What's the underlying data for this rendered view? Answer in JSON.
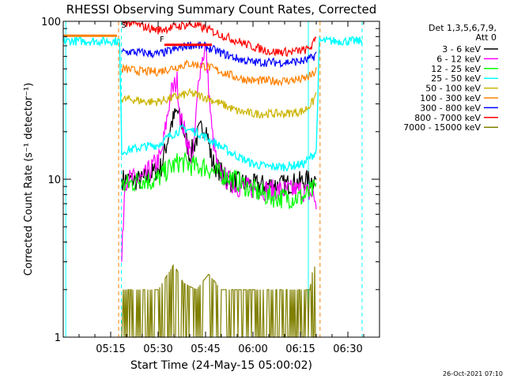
{
  "chart_data": {
    "type": "line",
    "title": "RHESSI Observing Summary Count Rates, Corrected",
    "xlabel": "Start Time (24-May-15 05:00:02)",
    "ylabel": "Corrected Count Rate (s⁻¹ detector⁻¹)",
    "y_scale": "log",
    "ylim": [
      1,
      100
    ],
    "xlim_minutes": [
      0,
      100
    ],
    "x_ticks": [
      {
        "m": 15,
        "label": "05:15"
      },
      {
        "m": 30,
        "label": "05:30"
      },
      {
        "m": 45,
        "label": "05:45"
      },
      {
        "m": 60,
        "label": "06:00"
      },
      {
        "m": 75,
        "label": "06:15"
      },
      {
        "m": 90,
        "label": "06:30"
      }
    ],
    "y_ticks": [
      {
        "v": 1,
        "label": "1"
      },
      {
        "v": 10,
        "label": "10"
      },
      {
        "v": 100,
        "label": "100"
      }
    ],
    "legend_header": [
      "Det 1,3,5,6,7,9,",
      "Att 0"
    ],
    "legend_position": "right",
    "series": [
      {
        "name": "3 - 6 keV",
        "color": "#000000",
        "points": [
          [
            18.5,
            10
          ],
          [
            25,
            9.8
          ],
          [
            31,
            12
          ],
          [
            34,
            22
          ],
          [
            36,
            27
          ],
          [
            38,
            21
          ],
          [
            40,
            14
          ],
          [
            43,
            20
          ],
          [
            45,
            22
          ],
          [
            47,
            13
          ],
          [
            52,
            9.8
          ],
          [
            60,
            9.2
          ],
          [
            70,
            9.2
          ],
          [
            77,
            9.8
          ],
          [
            80,
            10
          ]
        ]
      },
      {
        "name": "6 - 12 keV",
        "color": "#ff00ff",
        "points": [
          [
            18.5,
            3
          ],
          [
            19.5,
            10
          ],
          [
            25,
            10
          ],
          [
            31,
            14
          ],
          [
            34,
            35
          ],
          [
            36,
            42
          ],
          [
            37,
            25
          ],
          [
            39,
            18
          ],
          [
            41,
            13
          ],
          [
            43,
            48
          ],
          [
            45,
            70
          ],
          [
            47,
            20
          ],
          [
            49,
            11
          ],
          [
            55,
            9
          ],
          [
            65,
            8.5
          ],
          [
            75,
            8.5
          ],
          [
            79,
            8
          ],
          [
            80,
            7
          ]
        ]
      },
      {
        "name": "12 - 25 keV",
        "color": "#00ff00",
        "points": [
          [
            18.5,
            9
          ],
          [
            25,
            10
          ],
          [
            29,
            9.7
          ],
          [
            33,
            11.5
          ],
          [
            37,
            13
          ],
          [
            39,
            12.5
          ],
          [
            42,
            12
          ],
          [
            45,
            12
          ],
          [
            48,
            11
          ],
          [
            52,
            10.5
          ],
          [
            56,
            9.5
          ],
          [
            60,
            8.5
          ],
          [
            65,
            7.8
          ],
          [
            70,
            7.6
          ],
          [
            76,
            7.7
          ],
          [
            79,
            8.5
          ],
          [
            80,
            9
          ]
        ]
      },
      {
        "name": "25 - 50 keV",
        "color": "#00ffff",
        "points": [
          [
            0,
            75
          ],
          [
            17.8,
            75
          ],
          [
            18.5,
            15
          ],
          [
            25,
            16
          ],
          [
            30,
            16.5
          ],
          [
            34,
            19
          ],
          [
            38,
            21
          ],
          [
            42,
            20
          ],
          [
            46,
            18
          ],
          [
            50,
            16
          ],
          [
            55,
            14
          ],
          [
            60,
            12.5
          ],
          [
            65,
            12
          ],
          [
            70,
            12
          ],
          [
            76,
            12.5
          ],
          [
            80,
            15
          ],
          [
            81,
            75
          ],
          [
            94.5,
            75
          ]
        ]
      },
      {
        "name": "50 - 100 keV",
        "color": "#ccb400",
        "points": [
          [
            18.5,
            32
          ],
          [
            22,
            32
          ],
          [
            26,
            31
          ],
          [
            30,
            31
          ],
          [
            35,
            33
          ],
          [
            40,
            35
          ],
          [
            45,
            33
          ],
          [
            50,
            30
          ],
          [
            55,
            27
          ],
          [
            60,
            26
          ],
          [
            70,
            26
          ],
          [
            76,
            27
          ],
          [
            79,
            31
          ],
          [
            80,
            35
          ]
        ]
      },
      {
        "name": "100 - 300 keV",
        "color": "#ff8000",
        "points": [
          [
            18.5,
            50
          ],
          [
            22,
            49
          ],
          [
            26,
            48
          ],
          [
            30,
            48
          ],
          [
            35,
            51
          ],
          [
            40,
            54
          ],
          [
            45,
            52
          ],
          [
            50,
            48
          ],
          [
            55,
            44
          ],
          [
            60,
            42
          ],
          [
            70,
            42
          ],
          [
            76,
            43
          ],
          [
            79,
            46
          ],
          [
            80,
            49
          ]
        ]
      },
      {
        "name": "300 - 800 keV",
        "color": "#0000ff",
        "points": [
          [
            18.5,
            64
          ],
          [
            22,
            64
          ],
          [
            26,
            63
          ],
          [
            30,
            62
          ],
          [
            35,
            66
          ],
          [
            40,
            71
          ],
          [
            45,
            69
          ],
          [
            50,
            63
          ],
          [
            55,
            58
          ],
          [
            60,
            55
          ],
          [
            70,
            55
          ],
          [
            76,
            56
          ],
          [
            79,
            59
          ],
          [
            80,
            63
          ]
        ]
      },
      {
        "name": "800 - 7000 keV",
        "color": "#ff0000",
        "points": [
          [
            18.5,
            99
          ],
          [
            22,
            97
          ],
          [
            26,
            92
          ],
          [
            30,
            88
          ],
          [
            35,
            92
          ],
          [
            40,
            96
          ],
          [
            45,
            90
          ],
          [
            50,
            82
          ],
          [
            55,
            75
          ],
          [
            60,
            69
          ],
          [
            66,
            64
          ],
          [
            72,
            64
          ],
          [
            77,
            66
          ],
          [
            79,
            71
          ],
          [
            80,
            81
          ]
        ]
      },
      {
        "name": "7000 - 15000 keV",
        "color": "#808000",
        "points": [
          [
            18.5,
            1
          ],
          [
            19,
            2
          ],
          [
            25,
            2
          ],
          [
            30,
            2
          ],
          [
            35,
            2.9
          ],
          [
            38,
            2.2
          ],
          [
            42,
            2
          ],
          [
            46,
            2.5
          ],
          [
            50,
            2
          ],
          [
            60,
            2
          ],
          [
            70,
            2
          ],
          [
            78,
            2
          ],
          [
            79,
            2.8
          ],
          [
            80,
            2.8
          ]
        ]
      }
    ],
    "flag_bars": [
      {
        "color": "#ff8000",
        "x0": 0,
        "x1": 17,
        "y": 81
      },
      {
        "color": "#ff0000",
        "x0": 32,
        "x1": 47,
        "y": 71
      }
    ],
    "annotations": [
      {
        "text": "S",
        "x": 18.3,
        "y": 91
      },
      {
        "text": "F",
        "x": 30.5,
        "y": 74
      }
    ],
    "vlines": [
      {
        "x": 0.8,
        "color": "#00ffff",
        "style": "solid"
      },
      {
        "x": 17.5,
        "color": "#ff8000",
        "style": "dashed"
      },
      {
        "x": 18.4,
        "color": "#00ffff",
        "style": "dashed"
      },
      {
        "x": 77.5,
        "color": "#00ffff",
        "style": "solid"
      },
      {
        "x": 81.2,
        "color": "#ff8000",
        "style": "dashed"
      },
      {
        "x": 94.5,
        "color": "#00ffff",
        "style": "dashed"
      }
    ],
    "timestamp": "26-Oct-2021 07:10"
  }
}
